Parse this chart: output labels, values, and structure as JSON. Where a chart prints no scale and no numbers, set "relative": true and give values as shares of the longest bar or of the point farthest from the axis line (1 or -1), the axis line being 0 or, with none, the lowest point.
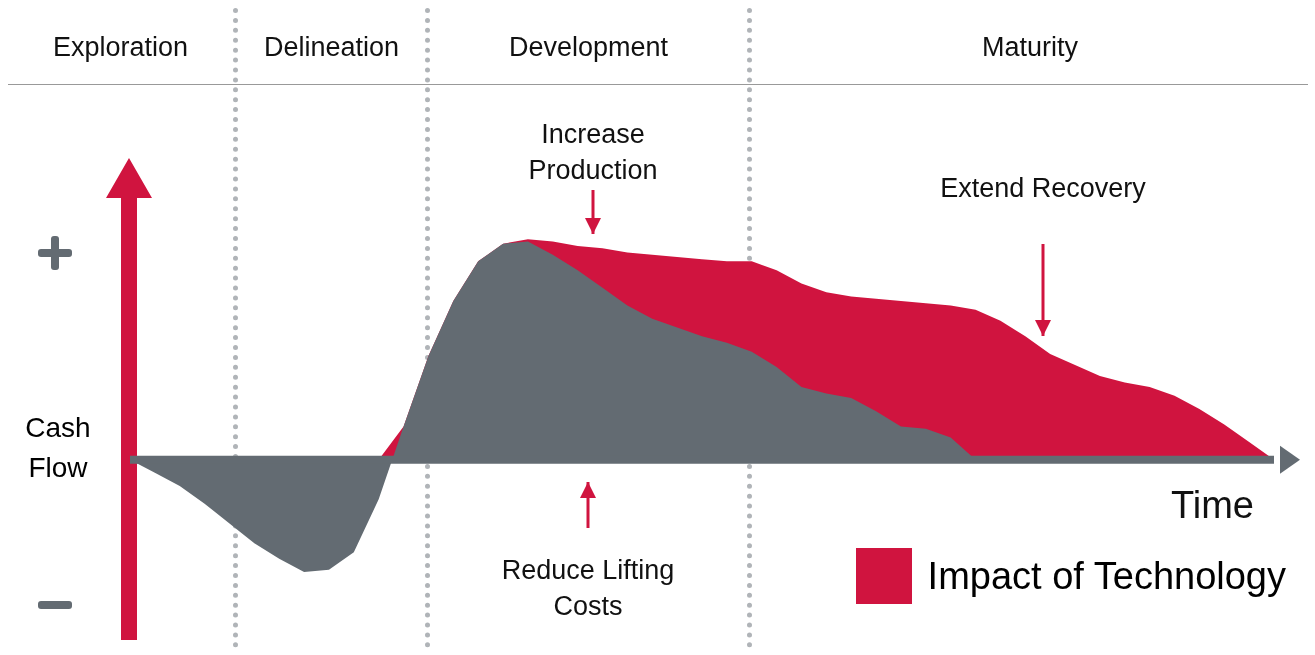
{
  "chart_data": {
    "type": "area",
    "relative": true,
    "xlabel": "Time",
    "ylabel": "Cash Flow",
    "tick_labels": false,
    "marker": "none",
    "legend": "bottom right",
    "categories": [
      null,
      null,
      null,
      null,
      null,
      null,
      null,
      null,
      null,
      null,
      null,
      null,
      null,
      null,
      null,
      null,
      null,
      null,
      null,
      null,
      null,
      null,
      null,
      null,
      null,
      null,
      null,
      null,
      null,
      null,
      null,
      null,
      null,
      null,
      null,
      null,
      null,
      null,
      null,
      null,
      null,
      null,
      null,
      null,
      null,
      null,
      null
    ],
    "series": [
      {
        "name": "Impact of Technology",
        "color": "#d0143f",
        "values": [
          0,
          0,
          0,
          0,
          0,
          0,
          0,
          0,
          0,
          0,
          0,
          0.15,
          0.47,
          0.72,
          0.9,
          0.98,
          1.0,
          0.99,
          0.97,
          0.96,
          0.94,
          0.93,
          0.92,
          0.91,
          0.9,
          0.9,
          0.86,
          0.8,
          0.76,
          0.74,
          0.73,
          0.72,
          0.71,
          0.7,
          0.68,
          0.63,
          0.56,
          0.48,
          0.43,
          0.38,
          0.35,
          0.33,
          0.29,
          0.23,
          0.16,
          0.08,
          0
        ]
      },
      {
        "color": "#636b72",
        "values": [
          0,
          -0.06,
          -0.12,
          -0.2,
          -0.29,
          -0.38,
          -0.45,
          -0.51,
          -0.5,
          -0.42,
          -0.18,
          0.15,
          0.47,
          0.72,
          0.9,
          0.98,
          0.99,
          0.93,
          0.86,
          0.78,
          0.7,
          0.64,
          0.6,
          0.56,
          0.53,
          0.49,
          0.42,
          0.33,
          0.3,
          0.28,
          0.22,
          0.15,
          0.14,
          0.1,
          0,
          null,
          null,
          null,
          null,
          null,
          null,
          null,
          null,
          null,
          null,
          null,
          null
        ]
      }
    ],
    "annotations": [
      "Exploration",
      "Delineation",
      "Development",
      "Maturity",
      "Increase Production",
      "Reduce Lifting Costs",
      "Extend Recovery"
    ]
  }
}
